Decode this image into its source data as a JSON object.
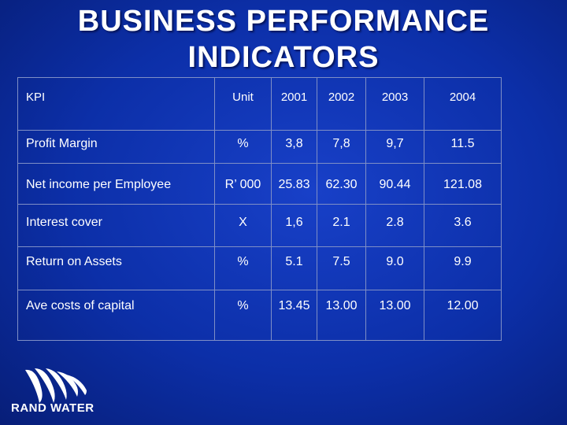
{
  "title": {
    "line1": "BUSINESS PERFORMANCE",
    "line2": "INDICATORS"
  },
  "table": {
    "headers": {
      "kpi": "KPI",
      "unit": "Unit",
      "years": [
        "2001",
        "2002",
        "2003",
        "2004"
      ]
    },
    "rows": [
      {
        "kpi": "Profit Margin",
        "unit": "%",
        "values": [
          "3,8",
          "7,8",
          "9,7",
          "11.5"
        ]
      },
      {
        "kpi": "Net income per Employee",
        "unit": "R’ 000",
        "values": [
          "25.83",
          "62.30",
          "90.44",
          "121.08"
        ]
      },
      {
        "kpi": "Interest cover",
        "unit": "X",
        "values": [
          "1,6",
          "2.1",
          "2.8",
          "3.6"
        ]
      },
      {
        "kpi": "Return on Assets",
        "unit": "%",
        "values": [
          "5.1",
          "7.5",
          "9.0",
          "9.9"
        ]
      },
      {
        "kpi": "Ave costs of capital",
        "unit": "%",
        "values": [
          "13.45",
          "13.00",
          "13.00",
          "12.00"
        ]
      }
    ]
  },
  "logo": {
    "text": "RAND WATER",
    "icon": "rand-water-wave-logo",
    "color": "#ffffff"
  },
  "colors": {
    "background": "#0c2fa8",
    "text": "#ffffff",
    "grid": "#7f8fc6"
  }
}
